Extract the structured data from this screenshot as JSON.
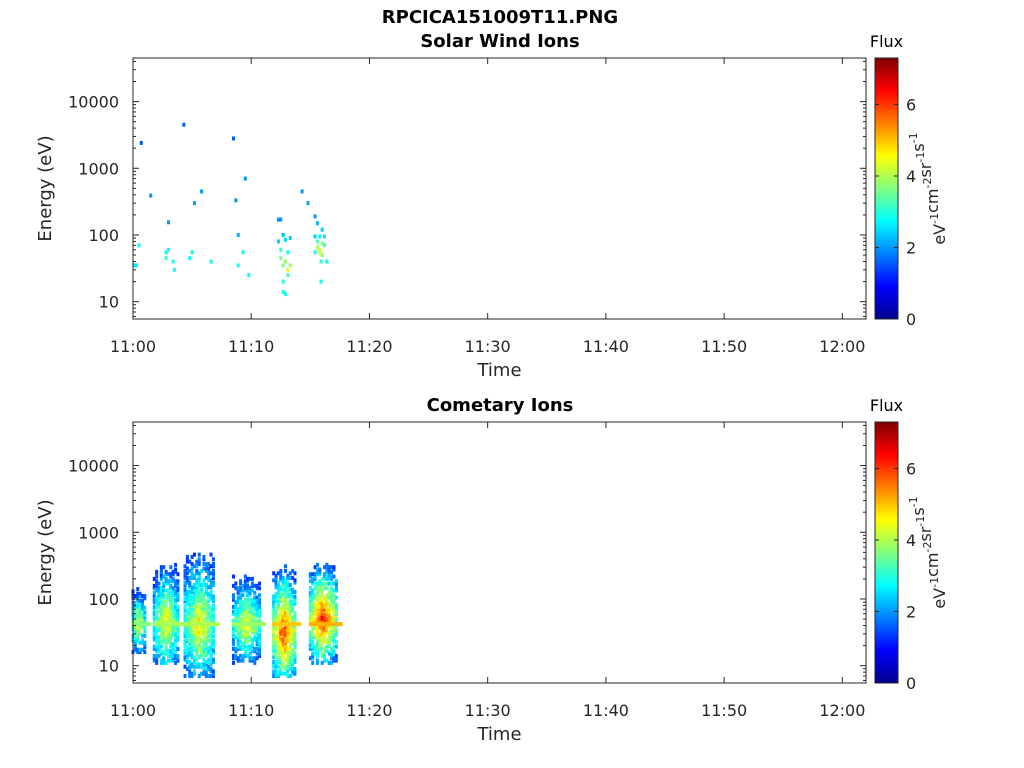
{
  "figure": {
    "title": "RPCICA151009T11.PNG"
  },
  "colors": {
    "colormap": "jet",
    "axes_color": "#262626",
    "background": "#ffffff"
  },
  "chart_data": [
    {
      "type": "heatmap",
      "title": "Solar Wind Ions",
      "xlabel": "Time",
      "ylabel": "Energy (eV)",
      "y_scale": "log",
      "xlim": [
        "11:00",
        "12:02"
      ],
      "ylim": [
        5.5,
        45000
      ],
      "xticks": [
        "11:00",
        "11:10",
        "11:20",
        "11:30",
        "11:40",
        "11:50",
        "12:00"
      ],
      "yticks": [
        10,
        100,
        1000,
        10000
      ],
      "ytick_labels": [
        "10",
        "100",
        "1000",
        "10000"
      ],
      "grid": false,
      "colorbar": {
        "title": "Flux",
        "label": "eV-1cm-2sr-1s-1",
        "range": [
          0,
          7.3
        ],
        "ticks": [
          0,
          2,
          4,
          6
        ]
      },
      "points": [
        {
          "t": 0.1,
          "e": 35,
          "v": 2.6
        },
        {
          "t": 0.3,
          "e": 35,
          "v": 2.6
        },
        {
          "t": 0.5,
          "e": 70,
          "v": 2.8
        },
        {
          "t": 0.7,
          "e": 2400,
          "v": 1.5
        },
        {
          "t": 1.5,
          "e": 390,
          "v": 2.0
        },
        {
          "t": 2.8,
          "e": 55,
          "v": 2.9
        },
        {
          "t": 2.8,
          "e": 45,
          "v": 3.1
        },
        {
          "t": 3.0,
          "e": 60,
          "v": 2.8
        },
        {
          "t": 3.0,
          "e": 155,
          "v": 2.0
        },
        {
          "t": 3.4,
          "e": 40,
          "v": 3.0
        },
        {
          "t": 3.5,
          "e": 30,
          "v": 2.8
        },
        {
          "t": 4.3,
          "e": 4500,
          "v": 1.6
        },
        {
          "t": 4.8,
          "e": 45,
          "v": 2.8
        },
        {
          "t": 5.0,
          "e": 55,
          "v": 2.8
        },
        {
          "t": 5.2,
          "e": 300,
          "v": 2.1
        },
        {
          "t": 5.8,
          "e": 450,
          "v": 2.0
        },
        {
          "t": 6.6,
          "e": 40,
          "v": 2.9
        },
        {
          "t": 8.5,
          "e": 2800,
          "v": 1.6
        },
        {
          "t": 8.7,
          "e": 330,
          "v": 2.0
        },
        {
          "t": 8.9,
          "e": 100,
          "v": 2.2
        },
        {
          "t": 8.9,
          "e": 35,
          "v": 2.9
        },
        {
          "t": 9.3,
          "e": 55,
          "v": 2.8
        },
        {
          "t": 9.5,
          "e": 700,
          "v": 2.0
        },
        {
          "t": 9.8,
          "e": 25,
          "v": 2.8
        },
        {
          "t": 12.3,
          "e": 170,
          "v": 2.0
        },
        {
          "t": 12.5,
          "e": 170,
          "v": 2.0
        },
        {
          "t": 12.3,
          "e": 80,
          "v": 2.4
        },
        {
          "t": 12.5,
          "e": 60,
          "v": 3.1
        },
        {
          "t": 12.5,
          "e": 45,
          "v": 3.6
        },
        {
          "t": 12.7,
          "e": 100,
          "v": 2.3
        },
        {
          "t": 12.7,
          "e": 35,
          "v": 3.6
        },
        {
          "t": 12.7,
          "e": 20,
          "v": 3.0
        },
        {
          "t": 12.9,
          "e": 85,
          "v": 2.5
        },
        {
          "t": 12.9,
          "e": 40,
          "v": 3.8
        },
        {
          "t": 12.9,
          "e": 13,
          "v": 2.9
        },
        {
          "t": 13.1,
          "e": 30,
          "v": 4.3
        },
        {
          "t": 13.1,
          "e": 25,
          "v": 3.3
        },
        {
          "t": 13.1,
          "e": 55,
          "v": 2.8
        },
        {
          "t": 13.3,
          "e": 35,
          "v": 3.9
        },
        {
          "t": 13.3,
          "e": 90,
          "v": 2.4
        },
        {
          "t": 12.7,
          "e": 14,
          "v": 2.9
        },
        {
          "t": 14.3,
          "e": 450,
          "v": 2.0
        },
        {
          "t": 14.8,
          "e": 300,
          "v": 2.1
        },
        {
          "t": 15.4,
          "e": 190,
          "v": 2.0
        },
        {
          "t": 15.6,
          "e": 150,
          "v": 2.2
        },
        {
          "t": 15.4,
          "e": 95,
          "v": 2.4
        },
        {
          "t": 15.6,
          "e": 80,
          "v": 3.3
        },
        {
          "t": 15.6,
          "e": 65,
          "v": 3.9
        },
        {
          "t": 15.8,
          "e": 95,
          "v": 2.6
        },
        {
          "t": 15.8,
          "e": 60,
          "v": 4.1
        },
        {
          "t": 15.8,
          "e": 55,
          "v": 4.2
        },
        {
          "t": 16.0,
          "e": 120,
          "v": 2.4
        },
        {
          "t": 16.0,
          "e": 75,
          "v": 3.6
        },
        {
          "t": 16.0,
          "e": 50,
          "v": 3.8
        },
        {
          "t": 16.2,
          "e": 95,
          "v": 2.6
        },
        {
          "t": 16.2,
          "e": 70,
          "v": 3.3
        },
        {
          "t": 15.9,
          "e": 40,
          "v": 3.0
        },
        {
          "t": 15.9,
          "e": 20,
          "v": 2.8
        },
        {
          "t": 15.4,
          "e": 55,
          "v": 2.9
        },
        {
          "t": 16.4,
          "e": 40,
          "v": 2.8
        }
      ]
    },
    {
      "type": "heatmap",
      "title": "Cometary Ions",
      "xlabel": "Time",
      "ylabel": "Energy (eV)",
      "y_scale": "log",
      "xlim": [
        "11:00",
        "12:02"
      ],
      "ylim": [
        5.5,
        45000
      ],
      "xticks": [
        "11:00",
        "11:10",
        "11:20",
        "11:30",
        "11:40",
        "11:50",
        "12:00"
      ],
      "yticks": [
        10,
        100,
        1000,
        10000
      ],
      "ytick_labels": [
        "10",
        "100",
        "1000",
        "10000"
      ],
      "grid": false,
      "colorbar": {
        "title": "Flux",
        "label": "eV-1cm-2sr-1s-1",
        "range": [
          0,
          7.3
        ],
        "ticks": [
          0,
          2,
          4,
          6
        ]
      },
      "bursts": [
        {
          "t_start": 0.0,
          "t_end": 1.0,
          "e_min": 16,
          "e_max": 150,
          "peak_e": 42,
          "peak_v": 4.6
        },
        {
          "t_start": 1.8,
          "t_end": 3.9,
          "e_min": 11,
          "e_max": 350,
          "peak_e": 45,
          "peak_v": 4.9
        },
        {
          "t_start": 4.4,
          "t_end": 6.9,
          "e_min": 7,
          "e_max": 500,
          "peak_e": 42,
          "peak_v": 5.0
        },
        {
          "t_start": 8.5,
          "t_end": 10.8,
          "e_min": 11,
          "e_max": 230,
          "peak_e": 42,
          "peak_v": 4.8
        },
        {
          "t_start": 11.9,
          "t_end": 13.7,
          "e_min": 7,
          "e_max": 330,
          "peak_e": 33,
          "peak_v": 6.2
        },
        {
          "t_start": 15.0,
          "t_end": 17.2,
          "e_min": 11,
          "e_max": 350,
          "peak_e": 52,
          "peak_v": 6.4
        }
      ]
    }
  ]
}
